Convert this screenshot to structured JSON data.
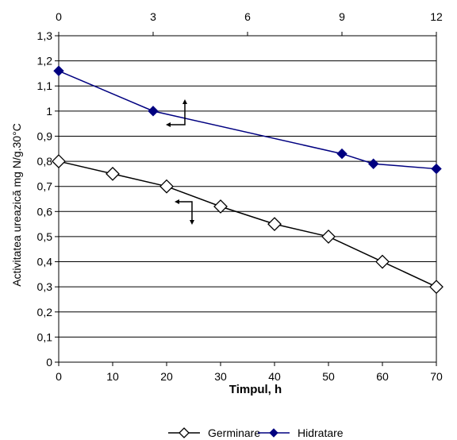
{
  "chart_data": {
    "type": "line",
    "xlabel": "Timpul, h",
    "ylabel": "Activitatea ureazică mg N/g.30°C",
    "xlim": [
      0,
      70
    ],
    "x_ticks": [
      "0",
      "10",
      "20",
      "30",
      "40",
      "50",
      "60",
      "70"
    ],
    "x2lim": [
      0,
      12
    ],
    "x2_ticks": [
      "0",
      "3",
      "6",
      "9",
      "12"
    ],
    "ylim": [
      0,
      1.3
    ],
    "y_ticks": [
      "0",
      "0,1",
      "0,2",
      "0,3",
      "0,4",
      "0,5",
      "0,6",
      "0,7",
      "0,8",
      "0,9",
      "1",
      "1,1",
      "1,2",
      "1,3"
    ],
    "grid": "horizontal",
    "legend_position": "bottom",
    "series": [
      {
        "name": "Germinare",
        "axis": "bottom",
        "color": "#000000",
        "marker": "diamond-open",
        "x": [
          0,
          10,
          20,
          30,
          40,
          50,
          60,
          70
        ],
        "y": [
          0.8,
          0.75,
          0.7,
          0.62,
          0.55,
          0.5,
          0.4,
          0.3
        ]
      },
      {
        "name": "Hidratare",
        "axis": "top",
        "color": "#000080",
        "marker": "diamond-filled",
        "x": [
          0,
          3,
          9,
          10,
          12
        ],
        "y": [
          1.16,
          1.0,
          0.83,
          0.79,
          0.77
        ]
      }
    ]
  }
}
